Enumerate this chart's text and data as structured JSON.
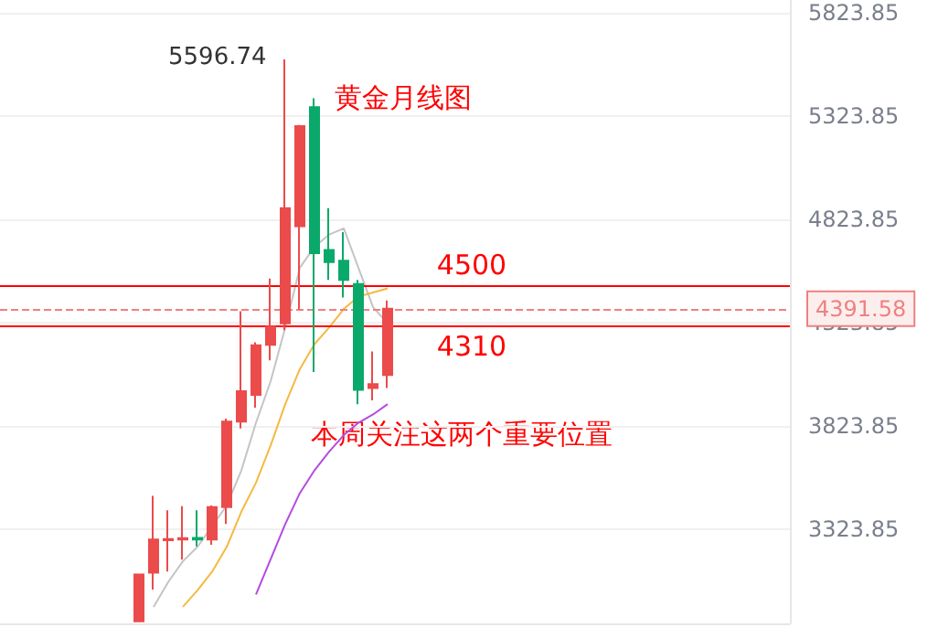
{
  "chart_data": {
    "type": "candlestick",
    "categories": [
      null,
      null,
      null,
      null,
      null,
      null,
      null,
      null,
      null,
      null,
      null,
      null,
      null,
      null,
      null,
      null,
      null,
      null,
      null,
      null,
      null,
      null,
      null,
      null,
      null,
      null,
      null,
      null,
      null,
      null,
      null,
      null,
      null,
      null,
      null,
      null,
      null,
      null,
      null,
      null,
      null,
      null,
      null,
      null,
      null,
      null,
      null,
      null,
      null,
      null,
      null,
      null,
      null,
      null
    ],
    "ohlc": [
      null,
      null,
      null,
      null,
      null,
      null,
      null,
      null,
      null,
      [
        2880,
        3106,
        2875,
        3106
      ],
      [
        3115,
        3486,
        3034,
        3276
      ],
      [
        3272,
        3417,
        3121,
        3278
      ],
      [
        3276,
        3437,
        3178,
        3282
      ],
      [
        3283,
        3417,
        3242,
        3275
      ],
      [
        3276,
        3440,
        3250,
        3432
      ],
      [
        3432,
        3860,
        3351,
        3846
      ],
      [
        3846,
        4379,
        3812,
        3993
      ],
      [
        3975,
        4229,
        3913,
        4215
      ],
      [
        4217,
        4537,
        4142,
        4304
      ],
      [
        4321,
        5596.74,
        4287,
        4877
      ],
      [
        4790,
        5280,
        4388,
        5274
      ],
      [
        5366,
        5409,
        4085,
        4660
      ],
      [
        4675,
        4877,
        4531,
        4617
      ],
      [
        4623,
        4762,
        4445,
        4531
      ],
      [
        4511,
        4531,
        3930,
        3999
      ],
      [
        4008,
        4185,
        3948,
        4027
      ],
      [
        4071,
        4431,
        4008,
        4391.58
      ],
      null,
      null,
      null,
      null,
      null,
      null,
      null,
      null,
      null,
      null,
      null,
      null,
      null,
      null,
      null,
      null,
      null,
      null,
      null,
      null,
      null,
      null,
      null,
      null,
      null,
      null,
      null
    ],
    "colors": [
      null,
      null,
      null,
      null,
      null,
      null,
      null,
      null,
      null,
      "#eb4b4b",
      "#eb4b4b",
      "#eb4b4b",
      "#eb4b4b",
      "#0aa96b",
      "#eb4b4b",
      "#eb4b4b",
      "#eb4b4b",
      "#eb4b4b",
      "#eb4b4b",
      "#eb4b4b",
      "#eb4b4b",
      "#0aa96b",
      "#0aa96b",
      "#0aa96b",
      "#0aa96b",
      "#eb4b4b",
      "#eb4b4b",
      null,
      null,
      null,
      null,
      null,
      null,
      null,
      null,
      null,
      null,
      null,
      null,
      null,
      null,
      null,
      null,
      null,
      null,
      null,
      null,
      null,
      null,
      null,
      null,
      null,
      null,
      null
    ],
    "series": [
      {
        "type": "line",
        "color": "#c4c4c4",
        "values": [
          null,
          null,
          null,
          null,
          null,
          null,
          null,
          null,
          null,
          null,
          2950,
          3070,
          3170,
          3240,
          3340,
          3440,
          3610,
          3840,
          4040,
          4300,
          4590,
          4690,
          4750,
          4780,
          4590,
          4400,
          4320,
          null,
          null,
          null,
          null,
          null,
          null,
          null,
          null,
          null,
          null,
          null,
          null,
          null,
          null,
          null,
          null,
          null,
          null,
          null,
          null,
          null,
          null,
          null,
          null,
          null,
          null,
          null
        ]
      },
      {
        "type": "line",
        "color": "#f5b942",
        "values": [
          null,
          null,
          null,
          null,
          null,
          null,
          null,
          null,
          null,
          null,
          null,
          null,
          2950,
          3030,
          3120,
          3240,
          3410,
          3550,
          3730,
          3930,
          4100,
          4220,
          4300,
          4390,
          4450,
          4470,
          4490,
          null,
          null,
          null,
          null,
          null,
          null,
          null,
          null,
          null,
          null,
          null,
          null,
          null,
          null,
          null,
          null,
          null,
          null,
          null,
          null,
          null,
          null,
          null,
          null,
          null,
          null,
          null
        ]
      },
      {
        "type": "line",
        "color": "#b44be1",
        "values": [
          null,
          null,
          null,
          null,
          null,
          null,
          null,
          null,
          null,
          null,
          null,
          null,
          null,
          null,
          null,
          null,
          null,
          3010,
          3180,
          3350,
          3500,
          3610,
          3700,
          3780,
          3840,
          3880,
          3930,
          null,
          null,
          null,
          null,
          null,
          null,
          null,
          null,
          null,
          null,
          null,
          null,
          null,
          null,
          null,
          null,
          null,
          null,
          null,
          null,
          null,
          null,
          null,
          null,
          null,
          null,
          null
        ]
      }
    ],
    "ylim": [
      2870,
      5884
    ],
    "yticks": [
      3323.85,
      3823.85,
      4323.85,
      4823.85,
      5323.85,
      5823.85
    ],
    "grid": "y",
    "ref_lines": [
      {
        "axis": "y",
        "value": 4500,
        "label": "4500",
        "color": "#ff0000"
      },
      {
        "axis": "y",
        "value": 4310,
        "label": "4310",
        "color": "#ff0000"
      },
      {
        "axis": "y",
        "value": 4391.58,
        "label": "4391.58",
        "color": "#f08080",
        "line_style": "dashed"
      }
    ],
    "annotations": [
      "5596.74",
      "黄金月线图",
      "本周关注这两个重要位置"
    ]
  }
}
